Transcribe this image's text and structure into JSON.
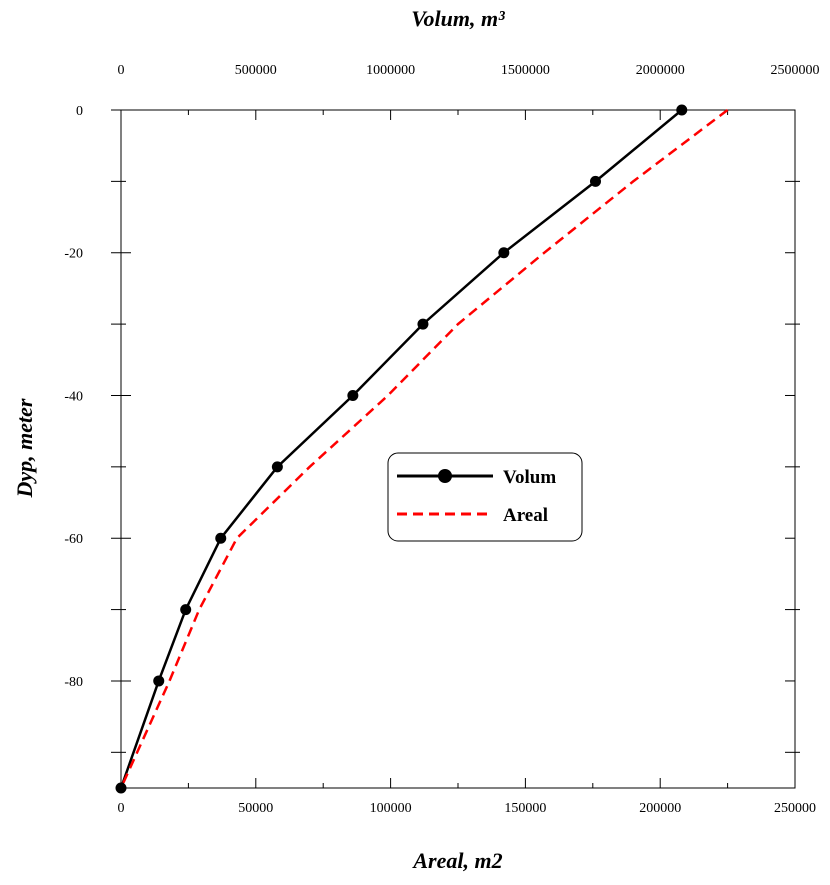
{
  "chart_data": {
    "type": "line",
    "top_axis": {
      "label": "Volum, m³",
      "range": [
        0,
        2500000
      ],
      "ticks": [
        "0",
        "500000",
        "1000000",
        "1500000",
        "2000000",
        "2500000"
      ]
    },
    "bottom_axis": {
      "label": "Areal, m2",
      "range": [
        0,
        250000
      ],
      "ticks": [
        "0",
        "50000",
        "100000",
        "150000",
        "200000",
        "250000"
      ]
    },
    "y_axis": {
      "label": "Dyp, meter",
      "range": [
        -95,
        0
      ],
      "ticks": [
        "0",
        "-20",
        "-40",
        "-60",
        "-80"
      ]
    },
    "series": [
      {
        "name": "Volum",
        "axis": "top",
        "color": "#000000",
        "style": "solid-markers",
        "x": [
          2080000,
          1760000,
          1420000,
          1120000,
          860000,
          580000,
          370000,
          240000,
          140000,
          0
        ],
        "y": [
          0,
          -10,
          -20,
          -30,
          -40,
          -50,
          -60,
          -70,
          -80,
          -95
        ]
      },
      {
        "name": "Areal",
        "axis": "bottom",
        "color": "#ff0000",
        "style": "dashed",
        "x": [
          225000,
          190000,
          157000,
          125000,
          99000,
          70000,
          43000,
          29000,
          18000,
          0
        ],
        "y": [
          0,
          -10,
          -20,
          -30,
          -40,
          -50,
          -60,
          -70,
          -80,
          -95
        ]
      }
    ],
    "legend_position": "center-right",
    "grid": false
  }
}
